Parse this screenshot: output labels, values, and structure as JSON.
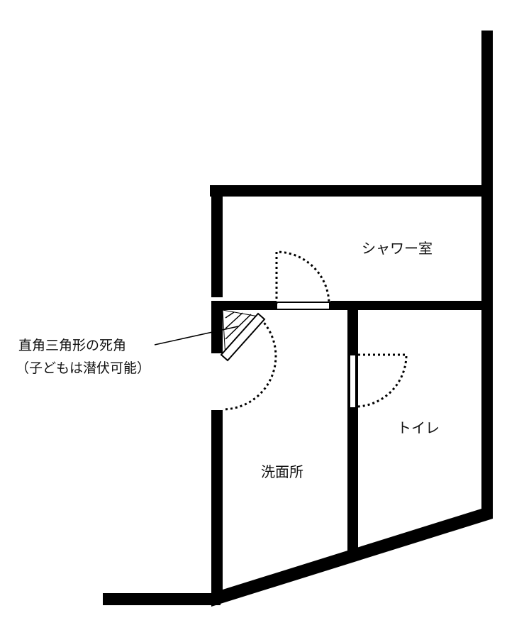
{
  "colors": {
    "wall": "#000000",
    "background": "#ffffff",
    "text": "#111111",
    "door_panel": "#ffffff"
  },
  "rooms": {
    "shower": "シャワー室",
    "toilet": "トイレ",
    "washroom": "洗面所"
  },
  "annotation": {
    "line1": "直角三角形の死角",
    "line2": "（子どもは潜伏可能）"
  }
}
